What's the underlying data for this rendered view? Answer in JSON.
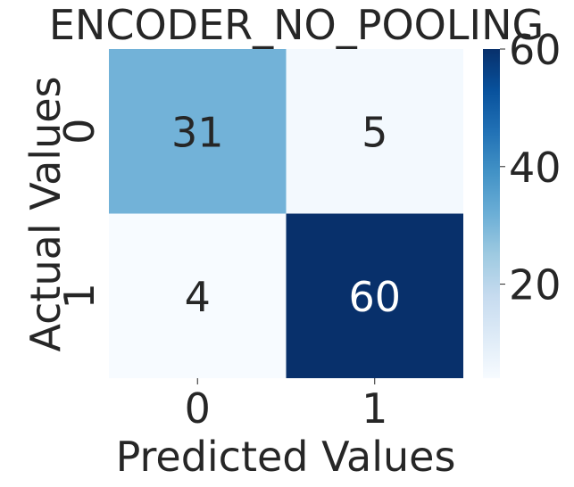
{
  "chart_data": {
    "type": "heatmap",
    "title": "ENCODER_NO_POOLING",
    "xlabel": "Predicted Values",
    "ylabel": "Actual Values",
    "x_categories": [
      "0",
      "1"
    ],
    "y_categories": [
      "0",
      "1"
    ],
    "values": [
      [
        31,
        5
      ],
      [
        4,
        60
      ]
    ],
    "annotations": [
      [
        "31",
        "5"
      ],
      [
        "4",
        "60"
      ]
    ],
    "colormap": "Blues",
    "color_range": [
      4,
      60
    ],
    "colorbar_ticks": [
      20,
      40,
      60
    ],
    "colorbar_tick_labels": [
      "20",
      "40",
      "60"
    ],
    "colors": {
      "low": "#f7fbff",
      "high": "#08306b",
      "annotation_dark": "#262626",
      "annotation_light": "#ffffff"
    }
  }
}
